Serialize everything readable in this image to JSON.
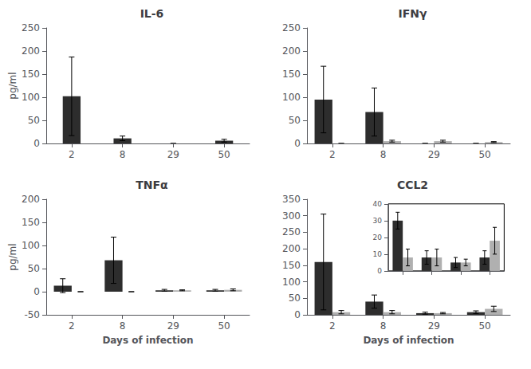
{
  "chart_data": [
    {
      "type": "bar",
      "title": "IL-6",
      "ylabel": "pg/ml",
      "categories": [
        "2",
        "8",
        "29",
        "50"
      ],
      "series": [
        {
          "color": "#2d2d2d",
          "values": [
            102,
            11,
            0,
            6
          ],
          "errors": [
            85,
            5,
            0,
            3
          ]
        }
      ],
      "ylim": [
        0,
        250
      ],
      "yticks": [
        0,
        50,
        100,
        150,
        200,
        250
      ],
      "grid": false
    },
    {
      "type": "bar",
      "title": "IFNγ",
      "categories": [
        "2",
        "8",
        "29",
        "50"
      ],
      "series": [
        {
          "color": "#2d2d2d",
          "values": [
            95,
            68,
            0,
            0
          ],
          "errors": [
            72,
            52,
            0,
            0
          ]
        },
        {
          "color": "#b0b0b0",
          "values": [
            0,
            5,
            5,
            3
          ],
          "errors": [
            0,
            2,
            2,
            1
          ]
        }
      ],
      "ylim": [
        0,
        250
      ],
      "yticks": [
        0,
        50,
        100,
        150,
        200,
        250
      ],
      "grid": false
    },
    {
      "type": "bar",
      "title": "TNFα",
      "ylabel": "pg/ml",
      "xlabel": "Days of infection",
      "categories": [
        "2",
        "8",
        "29",
        "50"
      ],
      "series": [
        {
          "color": "#2d2d2d",
          "values": [
            13,
            68,
            3,
            3
          ],
          "errors": [
            15,
            50,
            2,
            2
          ]
        },
        {
          "color": "#b0b0b0",
          "values": [
            0,
            0,
            3,
            4
          ],
          "errors": [
            0,
            0,
            1,
            2
          ]
        }
      ],
      "ylim": [
        -50,
        200
      ],
      "yticks": [
        -50,
        0,
        50,
        100,
        150,
        200
      ],
      "grid": false
    },
    {
      "type": "bar",
      "title": "CCL2",
      "xlabel": "Days of infection",
      "categories": [
        "2",
        "8",
        "29",
        "50"
      ],
      "series": [
        {
          "color": "#2d2d2d",
          "values": [
            160,
            40,
            5,
            8
          ],
          "errors": [
            145,
            20,
            3,
            4
          ]
        },
        {
          "color": "#b0b0b0",
          "values": [
            8,
            8,
            5,
            18
          ],
          "errors": [
            5,
            5,
            2,
            8
          ]
        }
      ],
      "ylim": [
        0,
        350
      ],
      "yticks": [
        0,
        50,
        100,
        150,
        200,
        250,
        300,
        350
      ],
      "grid": false,
      "inset": {
        "type": "bar",
        "categories": [
          null,
          null,
          null,
          null
        ],
        "series": [
          {
            "color": "#2d2d2d",
            "values": [
              30,
              8,
              5,
              8
            ],
            "errors": [
              5,
              4,
              3,
              4
            ]
          },
          {
            "color": "#b0b0b0",
            "values": [
              8,
              8,
              5,
              18
            ],
            "errors": [
              5,
              5,
              2,
              8
            ]
          }
        ],
        "ylim": [
          0,
          40
        ],
        "yticks": [
          0,
          10,
          20,
          30,
          40
        ],
        "grid": false,
        "tick_labels": "y"
      }
    }
  ]
}
